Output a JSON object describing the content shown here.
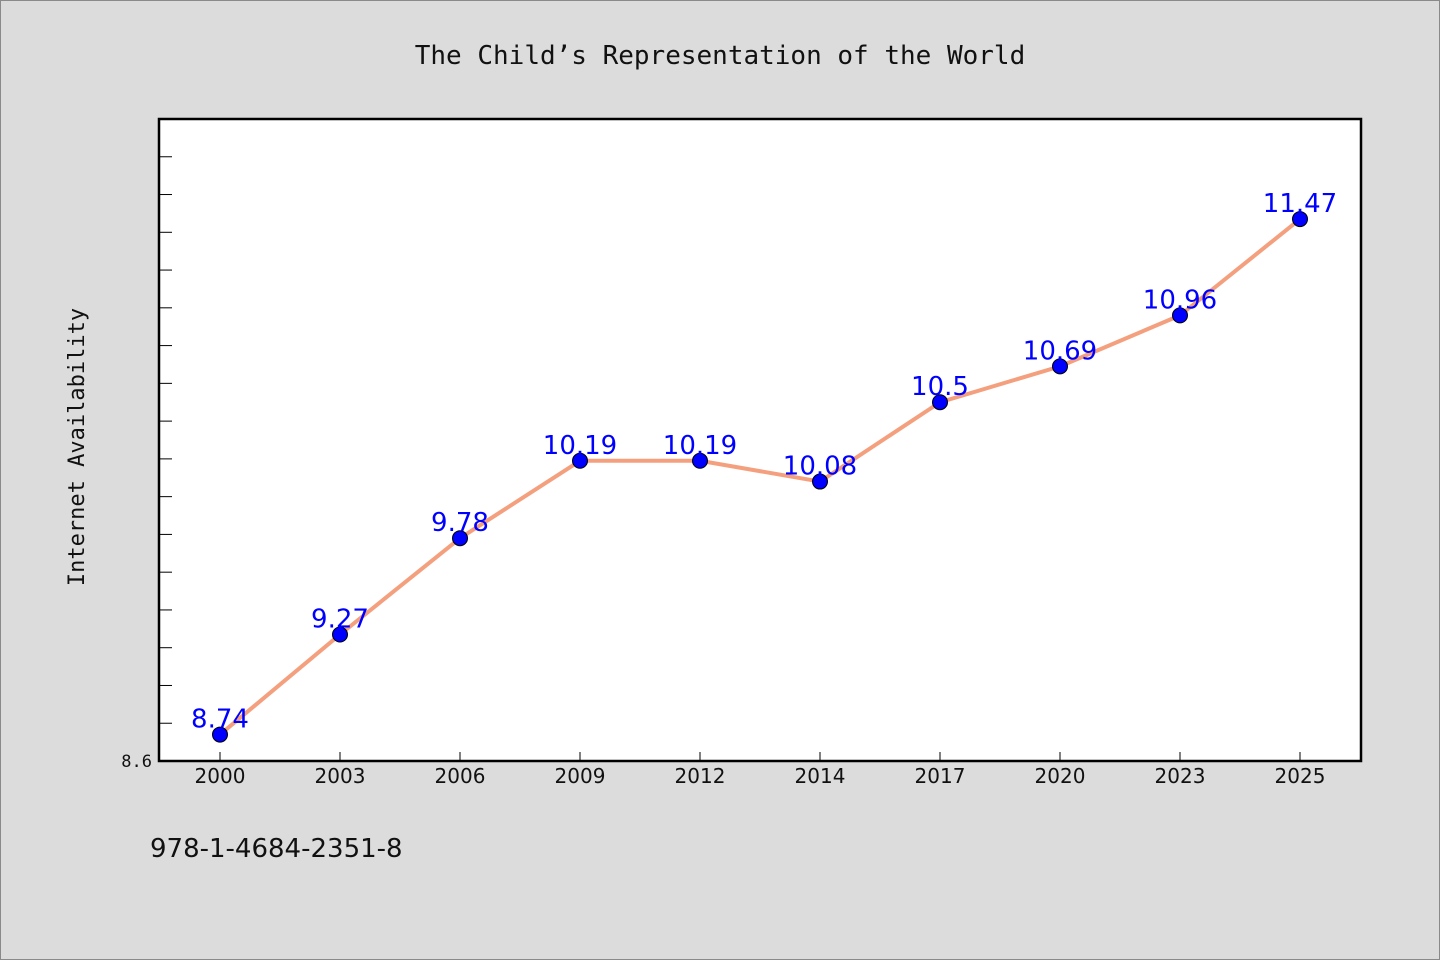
{
  "chart_data": {
    "type": "line",
    "title": "The Child’s Representation of the World",
    "xlabel": "",
    "ylabel": "Internet Availability",
    "categories": [
      "2000",
      "2003",
      "2006",
      "2009",
      "2012",
      "2014",
      "2017",
      "2020",
      "2023",
      "2025"
    ],
    "series": [
      {
        "name": "",
        "values": [
          8.74,
          9.27,
          9.78,
          10.19,
          10.19,
          10.08,
          10.5,
          10.69,
          10.96,
          11.47
        ]
      }
    ],
    "data_labels": [
      "8.74",
      "9.27",
      "9.78",
      "10.19",
      "10.19",
      "10.08",
      "10.5",
      "10.69",
      "10.96",
      "11.47"
    ],
    "ylim": [
      8.6,
      12.0
    ],
    "y_tick_label": "8.6",
    "grid": false,
    "legend": "none",
    "colors": {
      "line": "#f4a07e",
      "marker": "#0000ff",
      "data_label": "#0000ff",
      "plot_background": "#ffffff",
      "page_background": "#dcdcdc"
    }
  },
  "footer": {
    "isbn": "978-1-4684-2351-8"
  }
}
